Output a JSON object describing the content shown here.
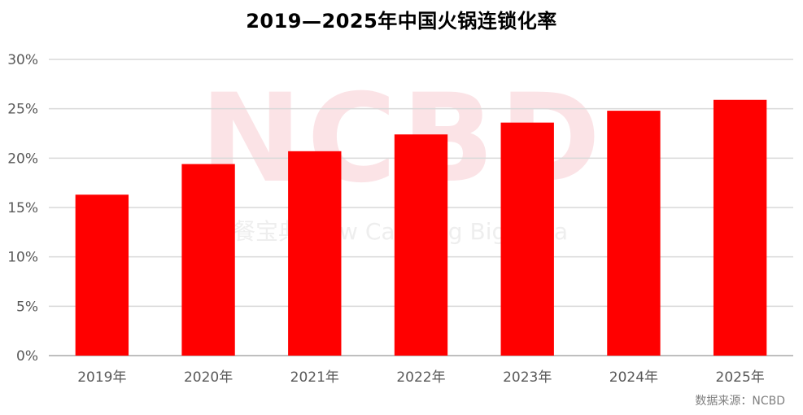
{
  "watermark": {
    "logo": "NCBD",
    "sub": "餐宝典 New Catering Big Data"
  },
  "source": "数据来源：NCBD",
  "colors": {
    "bar": "#ff0000",
    "grid": "#d9d9d9",
    "axis": "#bfbfbf",
    "text": "#595959"
  },
  "chart_data": {
    "type": "bar",
    "title": "2019—2025年中国火锅连锁化率",
    "categories": [
      "2019年",
      "2020年",
      "2021年",
      "2022年",
      "2023年",
      "2024年",
      "2025年"
    ],
    "series": [
      {
        "values": [
          16.3,
          19.4,
          20.7,
          22.4,
          23.6,
          24.8,
          25.9
        ]
      }
    ],
    "y_ticks": [
      "0%",
      "5%",
      "10%",
      "15%",
      "20%",
      "25%",
      "30%"
    ],
    "ylim": [
      0,
      30
    ],
    "unit": "%",
    "grid": true,
    "legend": "none"
  }
}
